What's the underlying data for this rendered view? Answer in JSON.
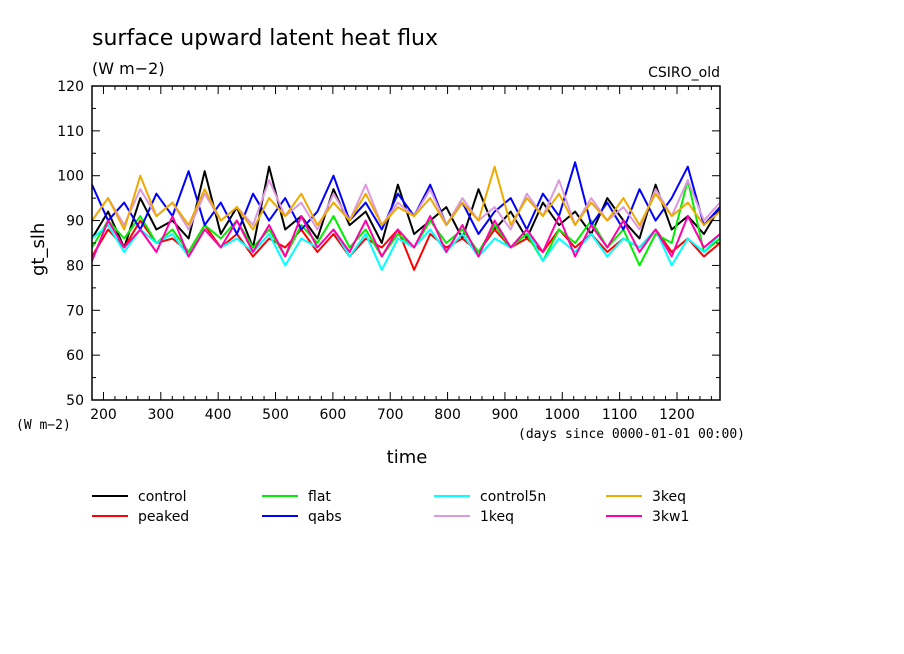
{
  "chart_data": {
    "type": "line",
    "title": "surface upward latent heat flux",
    "units": "(W m−2)",
    "model": "CSIRO_old",
    "ylabel": "gt_slh",
    "yunits": "(W m−2)",
    "xlabel": "time",
    "xunits": "(days since 0000-01-01 00:00)",
    "xlim": [
      180,
      1275
    ],
    "ylim": [
      50,
      120
    ],
    "xticks": [
      200,
      300,
      400,
      500,
      600,
      700,
      800,
      900,
      1000,
      1100,
      1200
    ],
    "yticks": [
      50,
      60,
      70,
      80,
      90,
      100,
      110,
      120
    ],
    "grid": false,
    "legend_position": "bottom",
    "series": [
      {
        "name": "control",
        "color": "#000000",
        "values": [
          86,
          92,
          84,
          95,
          88,
          90,
          86,
          101,
          87,
          93,
          84,
          102,
          88,
          91,
          86,
          97,
          89,
          92,
          85,
          98,
          87,
          90,
          93,
          86,
          97,
          88,
          92,
          86,
          94,
          89,
          92,
          87,
          95,
          90,
          86,
          98,
          88,
          91,
          87,
          93
        ]
      },
      {
        "name": "peaked",
        "color": "#ff0000",
        "values": [
          82,
          88,
          84,
          90,
          85,
          86,
          83,
          89,
          84,
          87,
          82,
          86,
          84,
          88,
          83,
          87,
          82,
          86,
          84,
          88,
          79,
          87,
          84,
          86,
          83,
          88,
          84,
          86,
          83,
          88,
          84,
          87,
          83,
          86,
          84,
          88,
          83,
          86,
          82,
          85
        ]
      },
      {
        "name": "flat",
        "color": "#00ee00",
        "values": [
          84,
          90,
          86,
          91,
          85,
          88,
          83,
          89,
          86,
          90,
          84,
          88,
          82,
          89,
          85,
          91,
          84,
          88,
          82,
          87,
          84,
          90,
          85,
          88,
          83,
          89,
          84,
          87,
          81,
          88,
          85,
          90,
          84,
          88,
          80,
          87,
          85,
          99,
          83,
          86
        ]
      },
      {
        "name": "qabs",
        "color": "#0000ff",
        "values": [
          98,
          90,
          94,
          88,
          96,
          91,
          101,
          89,
          94,
          87,
          96,
          90,
          95,
          88,
          92,
          100,
          90,
          94,
          88,
          96,
          91,
          98,
          89,
          94,
          87,
          92,
          95,
          88,
          96,
          91,
          103,
          89,
          94,
          88,
          97,
          90,
          95,
          102,
          89,
          93
        ]
      },
      {
        "name": "control5n",
        "color": "#00ffff",
        "values": [
          86,
          89,
          83,
          88,
          85,
          87,
          82,
          88,
          84,
          86,
          83,
          87,
          80,
          86,
          84,
          88,
          82,
          87,
          79,
          86,
          84,
          88,
          83,
          87,
          82,
          86,
          84,
          88,
          81,
          86,
          83,
          87,
          82,
          86,
          84,
          88,
          80,
          86,
          83,
          87
        ]
      },
      {
        "name": "1keq",
        "color": "#dd99dd",
        "values": [
          90,
          95,
          89,
          97,
          91,
          94,
          88,
          96,
          90,
          93,
          89,
          99,
          91,
          94,
          88,
          96,
          90,
          98,
          89,
          94,
          91,
          97,
          89,
          95,
          90,
          93,
          88,
          96,
          91,
          99,
          89,
          95,
          90,
          93,
          88,
          97,
          91,
          99,
          90,
          94
        ]
      },
      {
        "name": "3keq",
        "color": "#eeaa00",
        "values": [
          90,
          95,
          88,
          100,
          91,
          94,
          89,
          97,
          90,
          93,
          88,
          95,
          91,
          96,
          89,
          94,
          90,
          96,
          89,
          93,
          91,
          95,
          89,
          94,
          90,
          102,
          89,
          95,
          91,
          96,
          89,
          94,
          90,
          95,
          89,
          96,
          91,
          94,
          89,
          92
        ]
      },
      {
        "name": "3kw1",
        "color": "#ff00aa",
        "values": [
          81,
          90,
          84,
          88,
          83,
          91,
          82,
          88,
          84,
          90,
          83,
          89,
          82,
          91,
          84,
          88,
          83,
          90,
          82,
          88,
          84,
          91,
          83,
          89,
          82,
          90,
          84,
          88,
          83,
          91,
          82,
          89,
          84,
          90,
          83,
          88,
          82,
          91,
          84,
          87
        ]
      }
    ]
  }
}
